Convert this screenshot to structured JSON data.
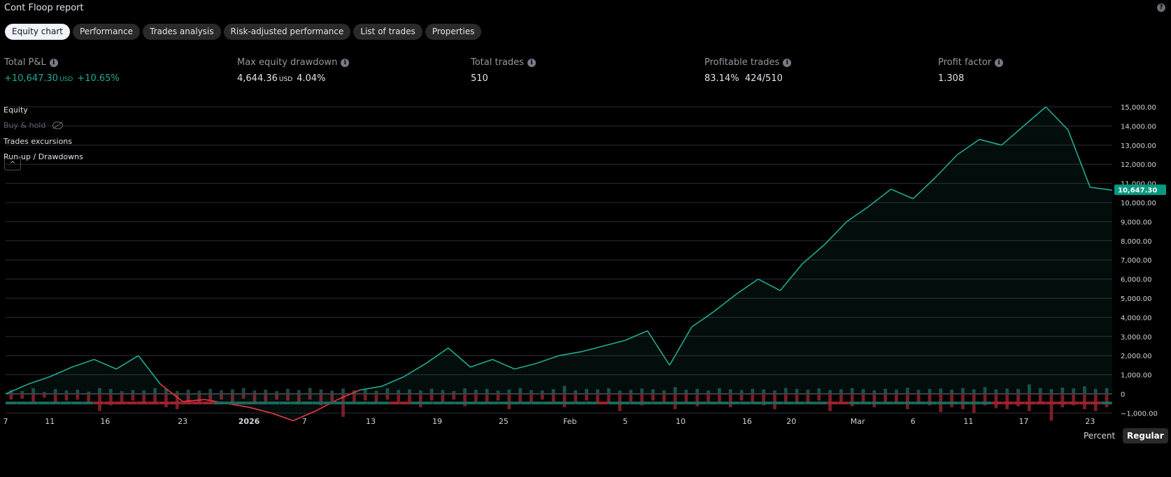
{
  "header": {
    "title": "Cont Floop report"
  },
  "tabs": [
    {
      "label": "Equity chart",
      "active": true
    },
    {
      "label": "Performance"
    },
    {
      "label": "Trades analysis"
    },
    {
      "label": "Risk-adjusted performance"
    },
    {
      "label": "List of trades"
    },
    {
      "label": "Properties"
    }
  ],
  "metrics": {
    "total_pnl": {
      "label": "Total P&L",
      "value": "+10,647.30",
      "unit": "USD",
      "pct": "+10.65%"
    },
    "max_drawdown": {
      "label": "Max equity drawdown",
      "value": "4,644.36",
      "unit": "USD",
      "pct": "4.04%"
    },
    "total_trades": {
      "label": "Total trades",
      "value": "510"
    },
    "profitable": {
      "label": "Profitable trades",
      "value": "83.14%",
      "ratio": "424/510"
    },
    "profit_factor": {
      "label": "Profit factor",
      "value": "1.308"
    }
  },
  "legend": {
    "equity": "Equity",
    "buy_hold": "Buy & hold",
    "excursions": "Trades excursions",
    "runup": "Run-up / Drawdowns"
  },
  "modes": {
    "percent": "Percent",
    "regular": "Regular"
  },
  "colors": {
    "up": "#22ab94",
    "down": "#f23645",
    "price_tag": "#089981"
  },
  "chart_data": {
    "type": "area",
    "ylim": [
      -1500,
      15000
    ],
    "y_ticks": [
      15000,
      14000,
      13000,
      12000,
      11000,
      10000,
      9000,
      8000,
      7000,
      6000,
      5000,
      4000,
      3000,
      2000,
      1000,
      0,
      -1000
    ],
    "y_tick_labels": [
      "15,000.00",
      "14,000.00",
      "13,000.00",
      "12,000.00",
      "11,000.00",
      "10,000.00",
      "9,000.00",
      "8,000.00",
      "7,000.00",
      "6,000.00",
      "5,000.00",
      "4,000.00",
      "3,000.00",
      "2,000.00",
      "1,000.00",
      "0",
      "−1,000.00"
    ],
    "x_tick_labels": [
      "7",
      "11",
      "16",
      "23",
      "2026",
      "7",
      "13",
      "19",
      "25",
      "Feb",
      "5",
      "10",
      "16",
      "20",
      "Mar",
      "6",
      "11",
      "17",
      "23"
    ],
    "x_tick_index": [
      0,
      4,
      9,
      16,
      22,
      27,
      33,
      39,
      45,
      51,
      56,
      61,
      67,
      71,
      77,
      82,
      87,
      92,
      98
    ],
    "last_value_label": "10,647.30",
    "equity": {
      "x_index": [
        0,
        2,
        4,
        6,
        8,
        10,
        12,
        14,
        16,
        18,
        20,
        22,
        24,
        26,
        28,
        30,
        32,
        34,
        36,
        38,
        40,
        42,
        44,
        46,
        48,
        50,
        52,
        54,
        56,
        58,
        60,
        62,
        64,
        66,
        68,
        70,
        72,
        74,
        76,
        78,
        80,
        82,
        84,
        86,
        88,
        90,
        92,
        94,
        96,
        98,
        100
      ],
      "values": [
        0,
        500,
        900,
        1400,
        1800,
        1300,
        2000,
        500,
        -400,
        -300,
        -500,
        -700,
        -1000,
        -1400,
        -900,
        -300,
        200,
        400,
        900,
        1600,
        2400,
        1400,
        1800,
        1300,
        1600,
        2000,
        2200,
        2500,
        2800,
        3300,
        1500,
        3500,
        4300,
        5200,
        6000,
        5400,
        6800,
        7800,
        9000,
        9800,
        10700,
        10200,
        11300,
        12500,
        13300,
        13000,
        14000,
        15000,
        13800,
        10800,
        10647
      ]
    },
    "runup_bars": [
      200,
      150,
      300,
      100,
      250,
      180,
      220,
      120,
      300,
      260,
      140,
      200,
      180,
      300,
      250,
      150,
      220,
      170,
      260,
      190,
      240,
      300,
      180,
      220,
      150,
      260,
      200,
      310,
      230,
      170,
      280,
      190,
      250,
      160,
      300,
      210,
      240,
      180,
      270,
      200,
      150,
      290,
      220,
      260,
      170,
      230,
      300,
      200,
      180,
      250,
      420,
      190,
      260,
      230,
      300,
      170,
      210,
      280,
      240,
      190,
      350,
      220,
      260,
      180,
      300,
      240,
      200,
      270,
      230,
      180,
      310,
      260,
      220,
      290,
      200,
      240,
      300,
      250,
      190,
      270,
      230,
      320,
      210,
      260,
      280,
      220,
      300,
      240,
      350,
      230,
      280,
      260,
      500,
      300,
      250,
      330,
      290,
      400,
      260,
      300
    ],
    "drawdown_bars": [
      300,
      250,
      400,
      200,
      500,
      350,
      300,
      450,
      900,
      600,
      400,
      350,
      500,
      450,
      700,
      800,
      500,
      400,
      350,
      300,
      450,
      250,
      500,
      400,
      300,
      350,
      450,
      300,
      600,
      400,
      1200,
      500,
      350,
      450,
      300,
      400,
      550,
      700,
      350,
      450,
      300,
      650,
      400,
      500,
      350,
      800,
      450,
      400,
      300,
      550,
      700,
      400,
      350,
      500,
      450,
      900,
      400,
      600,
      350,
      500,
      800,
      450,
      650,
      400,
      500,
      700,
      350,
      450,
      600,
      800,
      400,
      550,
      450,
      350,
      900,
      500,
      650,
      400,
      700,
      550,
      450,
      800,
      500,
      600,
      950,
      700,
      800,
      1000,
      600,
      750,
      800,
      650,
      900,
      550,
      1400,
      700,
      600,
      800,
      900,
      700
    ],
    "strip": [
      "up",
      "up",
      "up",
      "up",
      "up",
      "up",
      "up",
      "up",
      "down",
      "down",
      "down",
      "down",
      "down",
      "down",
      "down",
      "down",
      "down",
      "down",
      "down",
      "up",
      "up",
      "up",
      "up",
      "up",
      "up",
      "up",
      "up",
      "up",
      "up",
      "up",
      "up",
      "up",
      "up",
      "up",
      "up",
      "down",
      "down",
      "up",
      "up",
      "up",
      "up",
      "up",
      "up",
      "up",
      "up",
      "up",
      "up",
      "up",
      "up",
      "up",
      "up",
      "up",
      "up",
      "up",
      "down",
      "up",
      "up",
      "up",
      "up",
      "up",
      "up",
      "up",
      "up",
      "up",
      "up",
      "up",
      "up",
      "up",
      "up",
      "up",
      "up",
      "up",
      "up",
      "up",
      "up",
      "down",
      "down",
      "up",
      "up",
      "up",
      "up",
      "up",
      "up",
      "up",
      "up",
      "up",
      "up",
      "up",
      "up",
      "up",
      "down",
      "down",
      "down",
      "down",
      "down",
      "down",
      "down",
      "down",
      "down",
      "down",
      "up"
    ]
  }
}
